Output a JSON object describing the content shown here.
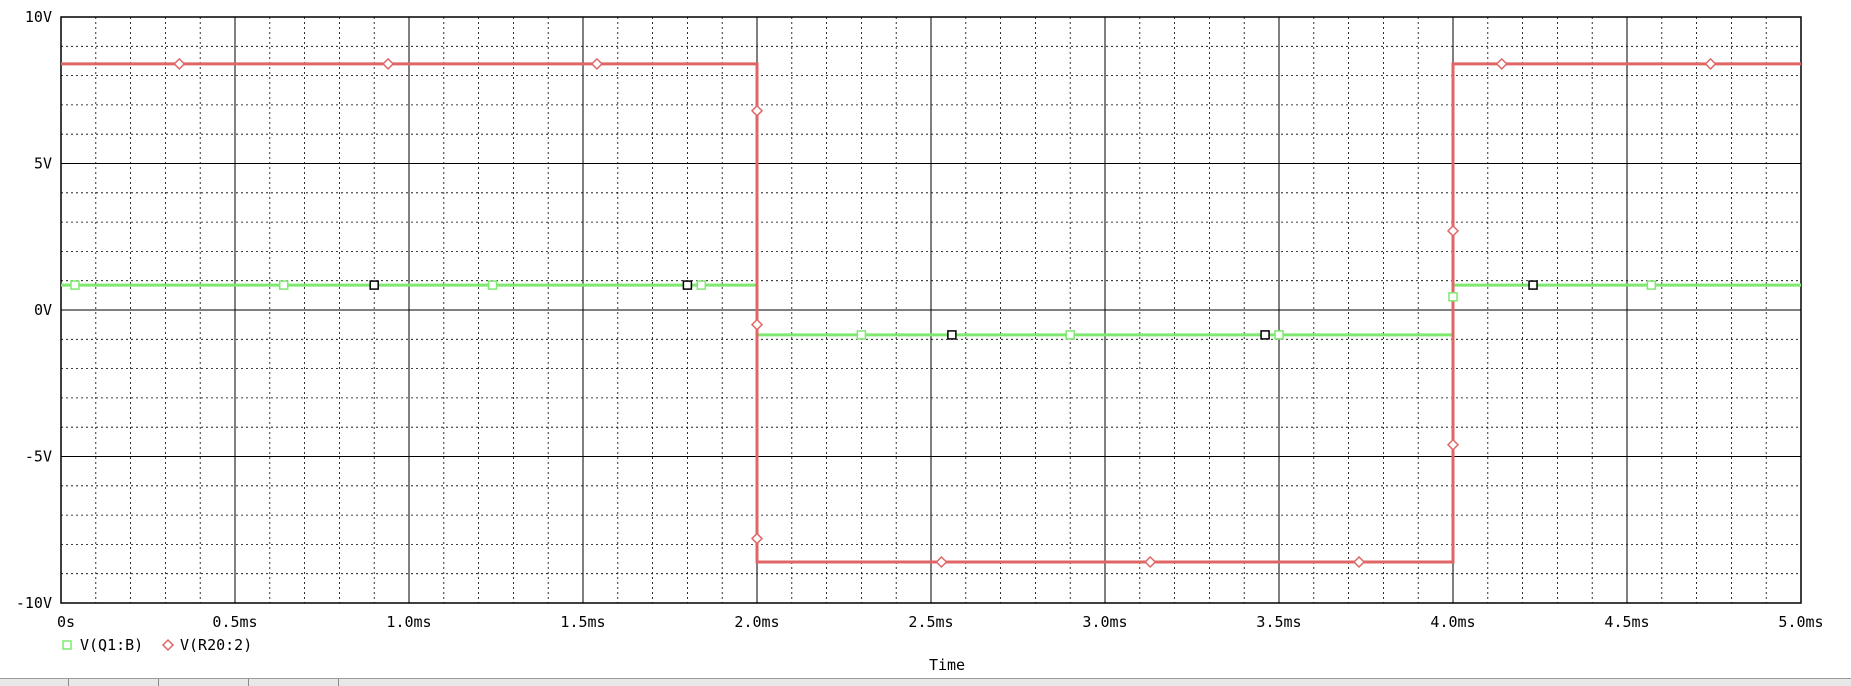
{
  "chart_data": {
    "type": "line",
    "title": "",
    "xlabel": "Time",
    "ylabel": "",
    "xlim": [
      0,
      5.0
    ],
    "ylim": [
      -10,
      10
    ],
    "x_unit": "ms",
    "x_ticks": [
      {
        "v": 0,
        "label": "0s"
      },
      {
        "v": 0.5,
        "label": "0.5ms"
      },
      {
        "v": 1.0,
        "label": "1.0ms"
      },
      {
        "v": 1.5,
        "label": "1.5ms"
      },
      {
        "v": 2.0,
        "label": "2.0ms"
      },
      {
        "v": 2.5,
        "label": "2.5ms"
      },
      {
        "v": 3.0,
        "label": "3.0ms"
      },
      {
        "v": 3.5,
        "label": "3.5ms"
      },
      {
        "v": 4.0,
        "label": "4.0ms"
      },
      {
        "v": 4.5,
        "label": "4.5ms"
      },
      {
        "v": 5.0,
        "label": "5.0ms"
      }
    ],
    "y_ticks": [
      {
        "v": 10,
        "label": "10V"
      },
      {
        "v": 5,
        "label": "5V"
      },
      {
        "v": 0,
        "label": "0V"
      },
      {
        "v": -5,
        "label": "-5V"
      },
      {
        "v": -10,
        "label": "-10V"
      }
    ],
    "grid": true,
    "legend_position": "bottom-left",
    "series": [
      {
        "name": "V(Q1:B)",
        "color": "#7ee870",
        "marker": "square",
        "x": [
          0,
          2.0,
          2.0,
          4.0,
          4.0,
          5.0
        ],
        "y": [
          0.85,
          0.85,
          -0.85,
          -0.85,
          0.85,
          0.85
        ],
        "marker_x": [
          0.04,
          0.64,
          1.24,
          1.84,
          2.3,
          2.9,
          3.5,
          4.0,
          4.57
        ],
        "marker_y": [
          0.85,
          0.85,
          0.85,
          0.85,
          -0.85,
          -0.85,
          -0.85,
          0.45,
          0.85
        ]
      },
      {
        "name": "V(R20:2)",
        "color": "#e06666",
        "marker": "diamond",
        "x": [
          0,
          2.0,
          2.0,
          4.0,
          4.0,
          5.0
        ],
        "y": [
          8.4,
          8.4,
          -8.6,
          -8.6,
          8.4,
          8.4
        ],
        "marker_x": [
          0.34,
          0.94,
          1.54,
          2.0,
          2.0,
          2.0,
          2.53,
          3.13,
          3.73,
          4.0,
          4.0,
          4.14,
          4.74
        ],
        "marker_y": [
          8.4,
          8.4,
          8.4,
          6.8,
          -0.5,
          -7.8,
          -8.6,
          -8.6,
          -8.6,
          2.7,
          -4.6,
          8.4,
          8.4
        ]
      }
    ],
    "cursor_markers": {
      "color": "#000000",
      "x": [
        0.9,
        1.8,
        2.56,
        3.46,
        4.23
      ],
      "y": [
        0.85,
        0.85,
        -0.85,
        -0.85,
        0.85
      ]
    }
  }
}
